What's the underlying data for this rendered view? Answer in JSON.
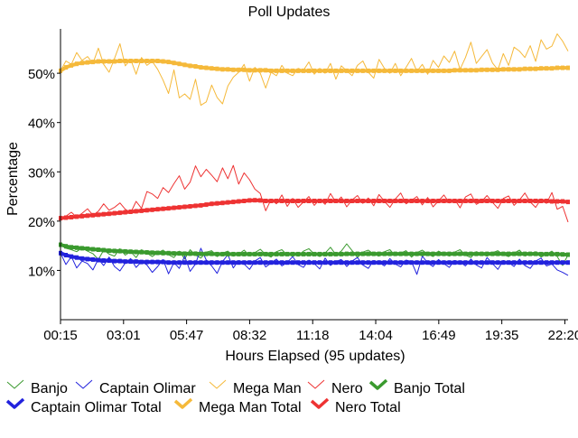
{
  "chart_data": {
    "type": "line",
    "title": "Poll Updates",
    "xlabel": "Hours Elapsed (95 updates)",
    "ylabel": "Percentage",
    "x_tick_labels": [
      "00:15",
      "03:01",
      "05:47",
      "08:32",
      "11:18",
      "14:04",
      "16:49",
      "19:35",
      "22:20"
    ],
    "y_tick_labels": [
      "10%",
      "20%",
      "30%",
      "40%",
      "50%"
    ],
    "y_ticks": [
      10,
      20,
      30,
      40,
      50
    ],
    "x_range": [
      0,
      95
    ],
    "ylim": [
      0,
      59
    ],
    "x_tick_positions": [
      0,
      11.8,
      23.6,
      35.4,
      47.2,
      59,
      70.8,
      82.6,
      94.4
    ],
    "grid": false,
    "legend_position": "bottom",
    "series": [
      {
        "name": "Banjo",
        "color": "#3a9a2e",
        "style": "thin",
        "values": [
          15.2,
          14.5,
          14.2,
          13.8,
          14.6,
          13.9,
          13.4,
          12.2,
          14.1,
          13.3,
          12.9,
          14.4,
          13.1,
          13.8,
          12.6,
          14.2,
          13.5,
          12.8,
          13.6,
          14.1,
          13.2,
          12.6,
          13.9,
          12.3,
          14.2,
          13.1,
          12.5,
          13.7,
          14.0,
          12.8,
          13.5,
          13.9,
          12.9,
          13.3,
          14.1,
          13.0,
          13.6,
          14.3,
          13.2,
          12.7,
          13.8,
          14.2,
          13.1,
          13.6,
          12.9,
          13.9,
          14.4,
          13.3,
          12.8,
          13.5,
          14.7,
          13.2,
          13.9,
          15.4,
          14.0,
          12.6,
          13.7,
          14.1,
          13.3,
          12.9,
          13.8,
          14.2,
          13.0,
          13.5,
          14.0,
          12.7,
          13.6,
          14.1,
          13.3,
          12.8,
          13.9,
          13.4,
          12.9,
          13.7,
          14.2,
          13.1,
          12.6,
          13.8,
          13.3,
          12.9,
          13.6,
          14.0,
          13.2,
          12.8,
          13.5,
          14.1,
          12.9,
          13.4,
          13.8,
          12.7,
          13.3,
          13.9,
          12.8,
          11.0,
          13.2
        ]
      },
      {
        "name": "Captain Olimar",
        "color": "#2222dd",
        "style": "thin",
        "values": [
          13.5,
          11.2,
          12.8,
          10.5,
          11.9,
          11.4,
          10.1,
          12.3,
          11.0,
          12.7,
          10.8,
          9.9,
          11.5,
          12.4,
          10.6,
          11.8,
          11.1,
          9.6,
          10.8,
          12.2,
          9.3,
          11.6,
          10.4,
          12.9,
          9.8,
          11.3,
          14.5,
          12.1,
          10.9,
          9.4,
          11.8,
          13.2,
          10.5,
          12.0,
          11.3,
          10.2,
          11.9,
          12.6,
          10.7,
          11.5,
          12.3,
          10.9,
          11.6,
          12.8,
          11.2,
          10.6,
          12.1,
          11.4,
          10.3,
          12.5,
          11.0,
          11.8,
          12.2,
          10.8,
          11.9,
          12.6,
          11.1,
          10.4,
          12.0,
          11.6,
          10.9,
          12.4,
          11.3,
          10.7,
          12.1,
          11.8,
          9.2,
          12.9,
          11.5,
          10.8,
          12.2,
          11.4,
          10.6,
          12.0,
          11.7,
          10.9,
          12.3,
          11.1,
          10.5,
          12.6,
          11.4,
          10.2,
          12.0,
          11.6,
          10.8,
          12.3,
          11.0,
          10.4,
          11.9,
          12.5,
          10.9,
          11.3,
          10.1,
          9.6,
          9.0
        ]
      },
      {
        "name": "Mega Man",
        "color": "#f5b93a",
        "style": "thin",
        "values": [
          50.5,
          52.5,
          51.8,
          54.2,
          52.6,
          53.4,
          52.0,
          55.1,
          51.8,
          50.2,
          53.0,
          56.0,
          51.5,
          52.8,
          49.8,
          53.2,
          51.6,
          52.4,
          50.8,
          48.6,
          45.9,
          50.7,
          45.0,
          45.8,
          44.7,
          48.8,
          43.5,
          44.2,
          47.6,
          45.1,
          43.8,
          47.4,
          49.2,
          50.2,
          51.8,
          48.4,
          51.2,
          50.0,
          47.0,
          50.2,
          49.5,
          51.6,
          50.0,
          49.5,
          51.0,
          50.6,
          52.3,
          49.8,
          51.0,
          50.0,
          52.0,
          48.8,
          51.5,
          50.5,
          49.5,
          51.6,
          52.5,
          50.2,
          49.0,
          52.8,
          51.0,
          50.0,
          52.0,
          49.5,
          51.2,
          53.0,
          50.4,
          51.8,
          49.8,
          52.6,
          51.2,
          53.5,
          52.2,
          54.5,
          50.8,
          53.2,
          56.3,
          52.0,
          53.4,
          54.8,
          52.1,
          50.7,
          54.0,
          51.6,
          55.3,
          54.5,
          53.2,
          55.6,
          52.4,
          56.8,
          54.9,
          55.5,
          58.0,
          56.5,
          54.5
        ]
      },
      {
        "name": "Nero",
        "color": "#ee3333",
        "style": "thin",
        "values": [
          20.6,
          21.0,
          21.8,
          20.8,
          21.6,
          22.5,
          21.2,
          22.0,
          23.5,
          22.2,
          22.8,
          23.7,
          22.4,
          21.7,
          24.0,
          22.6,
          26.0,
          25.5,
          24.6,
          26.8,
          25.8,
          27.6,
          29.2,
          26.5,
          27.9,
          31.2,
          29.0,
          30.5,
          29.3,
          28.0,
          30.8,
          28.6,
          31.3,
          27.5,
          29.8,
          28.4,
          26.5,
          25.6,
          22.1,
          24.4,
          23.5,
          25.3,
          23.0,
          24.6,
          22.8,
          23.9,
          25.0,
          23.2,
          24.4,
          23.4,
          25.6,
          23.8,
          24.9,
          22.9,
          24.3,
          25.2,
          23.6,
          24.7,
          23.1,
          25.4,
          24.0,
          22.8,
          24.5,
          25.7,
          23.5,
          24.2,
          25.0,
          23.3,
          24.8,
          22.9,
          24.1,
          25.3,
          23.7,
          24.4,
          22.7,
          24.9,
          25.5,
          23.4,
          24.0,
          25.2,
          23.8,
          22.6,
          24.6,
          25.1,
          23.2,
          24.3,
          25.7,
          23.9,
          22.8,
          24.5,
          23.6,
          25.8,
          22.4,
          23.0,
          19.8
        ]
      },
      {
        "name": "Banjo Total",
        "color": "#3a9a2e",
        "style": "thick",
        "values": [
          15.2,
          14.9,
          14.7,
          14.6,
          14.5,
          14.4,
          14.3,
          14.2,
          14.1,
          14.0,
          13.95,
          13.9,
          13.85,
          13.8,
          13.75,
          13.7,
          13.65,
          13.6,
          13.55,
          13.5,
          13.5,
          13.45,
          13.45,
          13.4,
          13.4,
          13.4,
          13.35,
          13.35,
          13.35,
          13.3,
          13.3,
          13.3,
          13.3,
          13.3,
          13.3,
          13.3,
          13.3,
          13.3,
          13.3,
          13.3,
          13.3,
          13.3,
          13.3,
          13.3,
          13.3,
          13.3,
          13.3,
          13.3,
          13.3,
          13.3,
          13.3,
          13.3,
          13.3,
          13.35,
          13.35,
          13.35,
          13.35,
          13.35,
          13.35,
          13.35,
          13.35,
          13.35,
          13.35,
          13.35,
          13.35,
          13.35,
          13.35,
          13.35,
          13.35,
          13.35,
          13.35,
          13.35,
          13.35,
          13.35,
          13.35,
          13.35,
          13.35,
          13.35,
          13.35,
          13.35,
          13.35,
          13.35,
          13.35,
          13.35,
          13.35,
          13.35,
          13.35,
          13.35,
          13.35,
          13.3,
          13.3,
          13.3,
          13.3,
          13.25,
          13.2
        ]
      },
      {
        "name": "Captain Olimar Total",
        "color": "#2222dd",
        "style": "thick",
        "values": [
          13.5,
          13.1,
          12.8,
          12.6,
          12.4,
          12.3,
          12.2,
          12.1,
          12.0,
          12.0,
          11.9,
          11.9,
          11.8,
          11.8,
          11.8,
          11.7,
          11.7,
          11.7,
          11.7,
          11.7,
          11.6,
          11.6,
          11.6,
          11.6,
          11.6,
          11.6,
          11.6,
          11.6,
          11.6,
          11.6,
          11.6,
          11.6,
          11.6,
          11.6,
          11.6,
          11.6,
          11.6,
          11.6,
          11.6,
          11.6,
          11.6,
          11.6,
          11.6,
          11.6,
          11.6,
          11.6,
          11.6,
          11.6,
          11.6,
          11.6,
          11.6,
          11.6,
          11.6,
          11.6,
          11.6,
          11.6,
          11.6,
          11.6,
          11.6,
          11.6,
          11.6,
          11.6,
          11.6,
          11.6,
          11.6,
          11.6,
          11.6,
          11.6,
          11.6,
          11.6,
          11.6,
          11.6,
          11.6,
          11.6,
          11.6,
          11.6,
          11.6,
          11.6,
          11.6,
          11.6,
          11.6,
          11.6,
          11.6,
          11.6,
          11.6,
          11.6,
          11.6,
          11.6,
          11.6,
          11.6,
          11.6,
          11.6,
          11.6,
          11.6,
          11.6
        ]
      },
      {
        "name": "Mega Man Total",
        "color": "#f5b93a",
        "style": "thick",
        "values": [
          50.5,
          51.2,
          51.6,
          51.9,
          52.1,
          52.2,
          52.3,
          52.4,
          52.4,
          52.4,
          52.4,
          52.5,
          52.5,
          52.5,
          52.5,
          52.5,
          52.5,
          52.5,
          52.5,
          52.4,
          52.3,
          52.1,
          51.9,
          51.7,
          51.5,
          51.4,
          51.2,
          51.1,
          51.0,
          50.9,
          50.8,
          50.8,
          50.7,
          50.7,
          50.7,
          50.6,
          50.6,
          50.6,
          50.6,
          50.5,
          50.5,
          50.5,
          50.5,
          50.5,
          50.5,
          50.5,
          50.5,
          50.5,
          50.5,
          50.5,
          50.5,
          50.5,
          50.5,
          50.5,
          50.5,
          50.5,
          50.5,
          50.5,
          50.5,
          50.5,
          50.5,
          50.5,
          50.5,
          50.5,
          50.5,
          50.5,
          50.5,
          50.5,
          50.5,
          50.5,
          50.5,
          50.5,
          50.5,
          50.6,
          50.6,
          50.6,
          50.6,
          50.6,
          50.7,
          50.7,
          50.7,
          50.7,
          50.8,
          50.8,
          50.8,
          50.8,
          50.9,
          50.9,
          50.9,
          51.0,
          51.0,
          51.0,
          51.1,
          51.1,
          51.1
        ]
      },
      {
        "name": "Nero Total",
        "color": "#ee3333",
        "style": "thick",
        "values": [
          20.6,
          20.7,
          20.8,
          20.9,
          21.0,
          21.1,
          21.2,
          21.3,
          21.4,
          21.5,
          21.6,
          21.7,
          21.8,
          21.9,
          22.0,
          22.1,
          22.2,
          22.3,
          22.4,
          22.5,
          22.6,
          22.7,
          22.8,
          22.9,
          23.0,
          23.1,
          23.2,
          23.35,
          23.5,
          23.6,
          23.7,
          23.8,
          23.9,
          24.0,
          24.1,
          24.2,
          24.25,
          24.2,
          24.1,
          24.1,
          24.1,
          24.1,
          24.1,
          24.1,
          24.1,
          24.1,
          24.1,
          24.1,
          24.1,
          24.1,
          24.1,
          24.1,
          24.1,
          24.1,
          24.1,
          24.1,
          24.1,
          24.1,
          24.1,
          24.1,
          24.1,
          24.1,
          24.1,
          24.1,
          24.1,
          24.1,
          24.1,
          24.1,
          24.1,
          24.1,
          24.1,
          24.1,
          24.1,
          24.1,
          24.1,
          24.1,
          24.1,
          24.1,
          24.1,
          24.1,
          24.1,
          24.1,
          24.1,
          24.1,
          24.1,
          24.1,
          24.1,
          24.1,
          24.1,
          24.1,
          24.1,
          24.0,
          24.0,
          24.0,
          23.9
        ]
      }
    ],
    "legend": [
      {
        "label": "Banjo",
        "color": "#3a9a2e",
        "style": "thin"
      },
      {
        "label": "Captain Olimar",
        "color": "#2222dd",
        "style": "thin"
      },
      {
        "label": "Mega Man",
        "color": "#f5b93a",
        "style": "thin"
      },
      {
        "label": "Nero",
        "color": "#ee3333",
        "style": "thin"
      },
      {
        "label": "Banjo Total",
        "color": "#3a9a2e",
        "style": "thick"
      },
      {
        "label": "Captain Olimar Total",
        "color": "#2222dd",
        "style": "thick"
      },
      {
        "label": "Mega Man Total",
        "color": "#f5b93a",
        "style": "thick"
      },
      {
        "label": "Nero Total",
        "color": "#ee3333",
        "style": "thick"
      }
    ]
  }
}
